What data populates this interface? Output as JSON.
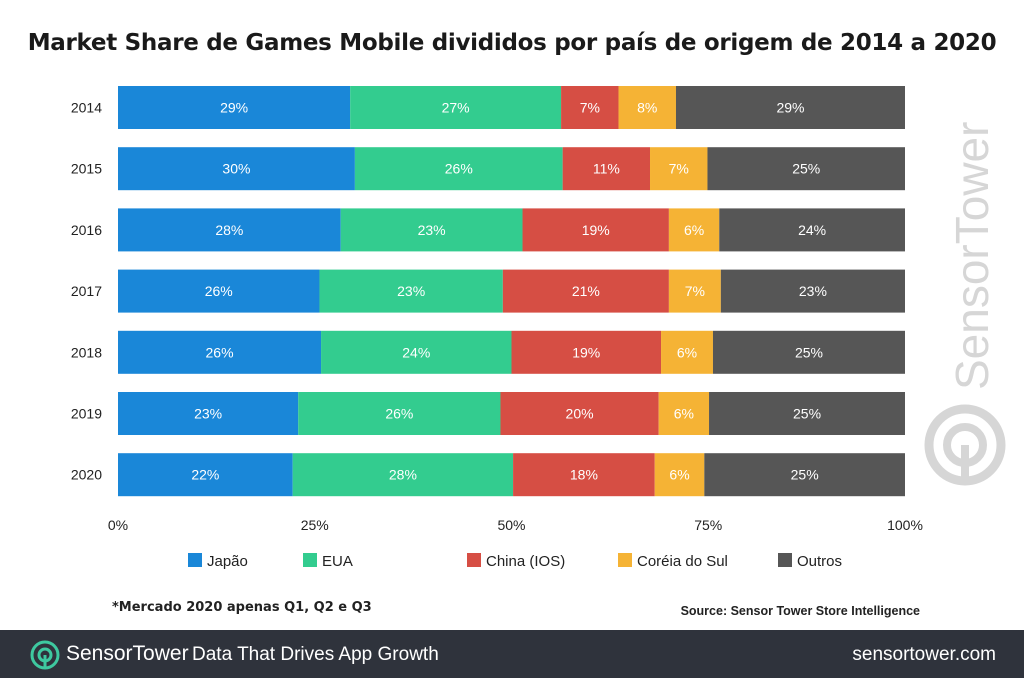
{
  "title": "Market Share de Games Mobile divididos por país de origem de 2014 a 2020",
  "footnote": "*Mercado 2020 apenas Q1, Q2 e Q3",
  "source": "Source: Sensor Tower Store Intelligence",
  "watermark": "SensorTower",
  "footer": {
    "brand_part1": "Sensor",
    "brand_part2": "Tower",
    "tagline": "Data That Drives App Growth",
    "site": "sensortower.com"
  },
  "colors": {
    "japao": "#1a87d8",
    "eua": "#33cc8f",
    "china": "#d64e44",
    "coreia": "#f5b335",
    "outros": "#565656",
    "footer_bg": "#2f333c"
  },
  "chart_data": {
    "type": "bar",
    "orientation": "horizontal",
    "stacked": true,
    "categories": [
      "2014",
      "2015",
      "2016",
      "2017",
      "2018",
      "2019",
      "2020"
    ],
    "series": [
      {
        "name": "Japão",
        "values": [
          29,
          30,
          28,
          26,
          26,
          23,
          22
        ]
      },
      {
        "name": "EUA",
        "values": [
          27,
          26,
          23,
          23,
          24,
          26,
          28
        ]
      },
      {
        "name": "China (IOS)",
        "values": [
          7,
          11,
          19,
          21,
          19,
          20,
          18
        ]
      },
      {
        "name": "Coréia do Sul",
        "values": [
          8,
          7,
          6,
          7,
          6,
          6,
          6
        ]
      },
      {
        "name": "Outros",
        "values": [
          29,
          25,
          24,
          23,
          25,
          25,
          25
        ]
      }
    ],
    "segment_widths": [
      [
        29.5,
        26.8,
        7.3,
        7.3,
        29.1
      ],
      [
        30.1,
        26.4,
        11.1,
        7.3,
        25.1
      ],
      [
        28.3,
        23.1,
        18.6,
        6.4,
        23.6
      ],
      [
        25.6,
        23.3,
        21.1,
        6.6,
        23.4
      ],
      [
        25.8,
        24.2,
        19.0,
        6.6,
        24.4
      ],
      [
        22.9,
        25.7,
        20.1,
        6.4,
        24.9
      ],
      [
        22.2,
        28.0,
        18.0,
        6.3,
        25.5
      ]
    ],
    "xticks": [
      "0%",
      "25%",
      "50%",
      "75%",
      "100%"
    ],
    "xlim": [
      0,
      100
    ],
    "legend_position": "bottom"
  }
}
